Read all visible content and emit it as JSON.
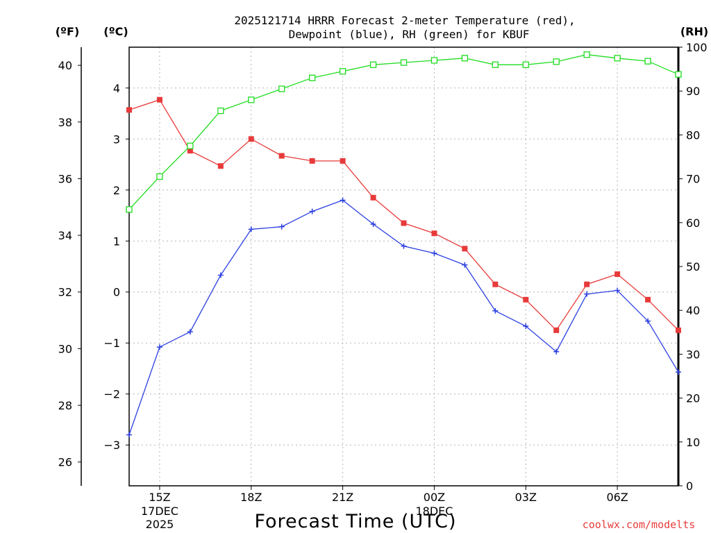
{
  "chart_data": {
    "type": "line",
    "title_line1": "2025121714 HRRR Forecast 2-meter Temperature (red),",
    "title_line2": "Dewpoint (blue), RH (green) for KBUF",
    "xlabel": "Forecast Time (UTC)",
    "credit": "coolwx.com/modelts",
    "units": {
      "f": "(ºF)",
      "c": "(ºC)",
      "rh": "(RH)"
    },
    "x_hours": [
      14,
      15,
      16,
      17,
      18,
      19,
      20,
      21,
      22,
      23,
      24,
      25,
      26,
      27,
      28,
      29,
      30,
      31,
      32
    ],
    "xlim": [
      14,
      32
    ],
    "x_ticks": [
      {
        "hour": 15,
        "label": "15Z",
        "sub1": "17DEC",
        "sub2": "2025"
      },
      {
        "hour": 18,
        "label": "18Z"
      },
      {
        "hour": 21,
        "label": "21Z"
      },
      {
        "hour": 24,
        "label": "00Z",
        "sub1": "18DEC"
      },
      {
        "hour": 27,
        "label": "03Z"
      },
      {
        "hour": 30,
        "label": "06Z"
      }
    ],
    "y_left_c": {
      "ylim": [
        -3.8,
        4.8
      ],
      "ticks": [
        "4",
        "3",
        "2",
        "1",
        "0",
        "−1",
        "−2",
        "−3"
      ],
      "tick_values": [
        4,
        3,
        2,
        1,
        0,
        -1,
        -2,
        -3
      ]
    },
    "y_left_f": {
      "ticks": [
        "40",
        "38",
        "36",
        "34",
        "32",
        "30",
        "28",
        "26"
      ],
      "tick_values": [
        40,
        38,
        36,
        34,
        32,
        30,
        28,
        26
      ]
    },
    "y_right_rh": {
      "ylim": [
        0,
        100
      ],
      "ticks": [
        "100",
        "90",
        "80",
        "70",
        "60",
        "50",
        "40",
        "30",
        "20",
        "10",
        "0"
      ],
      "tick_values": [
        100,
        90,
        80,
        70,
        60,
        50,
        40,
        30,
        20,
        10,
        0
      ]
    },
    "series": [
      {
        "name": "Temperature",
        "axis": "c",
        "color": "#e83a3a",
        "marker": "filled-square",
        "values": [
          3.57,
          3.77,
          2.77,
          2.47,
          3.0,
          2.67,
          2.57,
          2.57,
          1.85,
          1.35,
          1.15,
          0.85,
          0.15,
          -0.15,
          -0.75,
          0.15,
          0.35,
          -0.15,
          -0.75
        ]
      },
      {
        "name": "Dewpoint",
        "axis": "c",
        "color": "#2b3fe0",
        "marker": "plus",
        "values": [
          -2.8,
          -1.08,
          -0.78,
          0.33,
          1.23,
          1.28,
          1.58,
          1.8,
          1.33,
          0.9,
          0.76,
          0.53,
          -0.37,
          -0.67,
          -1.17,
          -0.04,
          0.03,
          -0.57,
          -1.57
        ]
      },
      {
        "name": "RH",
        "axis": "rh",
        "color": "#1edc1e",
        "marker": "open-square",
        "values": [
          63,
          70.5,
          77.5,
          85.5,
          88,
          90.5,
          93,
          94.5,
          96,
          96.5,
          97,
          97.5,
          96,
          96,
          96.7,
          98.3,
          97.5,
          96.8,
          93.8
        ]
      }
    ]
  }
}
